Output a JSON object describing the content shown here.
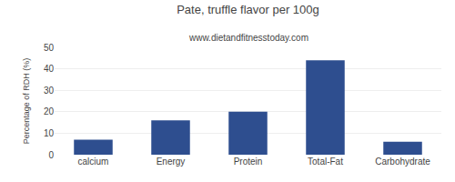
{
  "chart_data": {
    "type": "bar",
    "title": "Pate, truffle flavor per 100g",
    "subtitle": "www.dietandfitnesstoday.com",
    "ylabel": "Percentage of RDH (%)",
    "categories": [
      "calcium",
      "Energy",
      "Protein",
      "Total-Fat",
      "Carbohydrate"
    ],
    "values": [
      7,
      16,
      20,
      44,
      6
    ],
    "color": "#2e4e8f",
    "ylim": [
      0,
      50
    ],
    "yticks": [
      0,
      10,
      20,
      30,
      40,
      50
    ],
    "grid": true
  }
}
